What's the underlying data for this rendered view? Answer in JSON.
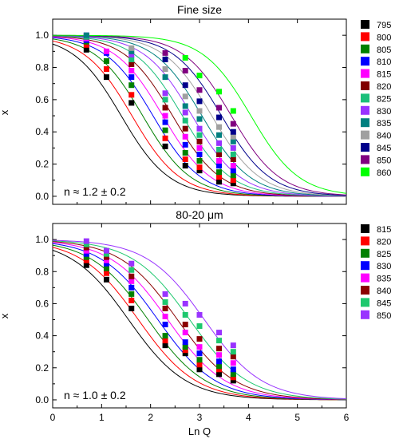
{
  "chart_data": [
    {
      "type": "scatter",
      "title": "Fine size",
      "xlabel": "",
      "ylabel": "x",
      "xlim": [
        0,
        6
      ],
      "ylim": [
        -0.05,
        1.1
      ],
      "yticks": [
        "0.0",
        "0.2",
        "0.4",
        "0.6",
        "0.8",
        "1.0"
      ],
      "annotation": "n ≈ 1.2 ± 0.2",
      "fit_exponent": 1.2,
      "legend_position": "right",
      "x": [
        0.69,
        1.1,
        1.61,
        2.3,
        2.71,
        3.0,
        3.4,
        3.69
      ],
      "series": [
        {
          "name": "795",
          "color": "#000000",
          "x50": 1.4,
          "values": [
            0.91,
            0.74,
            0.58,
            0.31,
            0.19,
            0.16,
            0.09,
            0.08
          ]
        },
        {
          "name": "800",
          "color": "#ff0000",
          "x50": 1.62,
          "values": [
            0.94,
            0.79,
            0.63,
            0.36,
            0.23,
            0.18,
            0.12,
            0.1
          ]
        },
        {
          "name": "805",
          "color": "#008000",
          "x50": 1.84,
          "values": [
            0.96,
            0.84,
            0.69,
            0.41,
            0.27,
            0.22,
            0.15,
            0.13
          ]
        },
        {
          "name": "810",
          "color": "#0000ff",
          "x50": 2.05,
          "values": [
            0.97,
            0.89,
            0.74,
            0.46,
            0.32,
            0.26,
            0.19,
            0.16
          ]
        },
        {
          "name": "815",
          "color": "#ff00ff",
          "x50": 2.25,
          "values": [
            0.98,
            0.9,
            0.78,
            0.5,
            0.37,
            0.3,
            0.22,
            0.19
          ]
        },
        {
          "name": "820",
          "color": "#800000",
          "x50": 2.45,
          "values": [
            0.99,
            null,
            0.82,
            0.55,
            0.42,
            0.34,
            0.26,
            0.23
          ]
        },
        {
          "name": "825",
          "color": "#1bbf7a",
          "x50": 2.65,
          "values": [
            0.99,
            null,
            0.85,
            0.6,
            0.47,
            0.38,
            0.29,
            0.26
          ]
        },
        {
          "name": "830",
          "color": "#9933ff",
          "x50": 2.85,
          "values": [
            1.0,
            null,
            0.88,
            0.64,
            0.52,
            0.42,
            0.33,
            0.3
          ]
        },
        {
          "name": "835",
          "color": "#008080",
          "x50": 3.05,
          "values": [
            1.0,
            null,
            0.9,
            0.74,
            0.56,
            0.48,
            0.38,
            0.34
          ]
        },
        {
          "name": "840",
          "color": "#a0a0a0",
          "x50": 3.25,
          "values": [
            null,
            null,
            0.92,
            0.79,
            0.62,
            0.53,
            0.43,
            0.37
          ]
        },
        {
          "name": "845",
          "color": "#00008b",
          "x50": 3.45,
          "values": [
            null,
            null,
            null,
            0.85,
            0.69,
            0.59,
            0.49,
            0.4
          ]
        },
        {
          "name": "850",
          "color": "#800080",
          "x50": 3.65,
          "values": [
            null,
            null,
            null,
            0.89,
            0.78,
            0.66,
            0.55,
            0.45
          ]
        },
        {
          "name": "860",
          "color": "#00ff00",
          "x50": 4.05,
          "values": [
            null,
            null,
            null,
            null,
            0.86,
            0.75,
            0.65,
            0.53
          ]
        }
      ]
    },
    {
      "type": "scatter",
      "title": "80-20 μm",
      "xlabel": "Ln Q",
      "ylabel": "x",
      "xlim": [
        0,
        6
      ],
      "ylim": [
        -0.05,
        1.1
      ],
      "xticks": [
        "0",
        "1",
        "2",
        "3",
        "4",
        "5",
        "6"
      ],
      "yticks": [
        "0.0",
        "0.2",
        "0.4",
        "0.6",
        "0.8",
        "1.0"
      ],
      "annotation": "n ≈ 1.0 ± 0.2",
      "fit_exponent": 1.0,
      "legend_position": "right",
      "x": [
        0.69,
        1.1,
        1.61,
        2.3,
        2.71,
        3.0,
        3.4,
        3.69
      ],
      "series": [
        {
          "name": "815",
          "color": "#000000",
          "x50": 1.55,
          "values": [
            0.84,
            0.75,
            0.57,
            0.34,
            0.29,
            0.19,
            0.16,
            0.12
          ]
        },
        {
          "name": "820",
          "color": "#ff0000",
          "x50": 1.75,
          "values": [
            0.87,
            0.79,
            0.62,
            0.37,
            0.31,
            0.22,
            0.19,
            0.14
          ]
        },
        {
          "name": "825",
          "color": "#008000",
          "x50": 1.95,
          "values": [
            0.89,
            0.82,
            0.66,
            0.4,
            0.33,
            0.25,
            0.21,
            0.16
          ]
        },
        {
          "name": "830",
          "color": "#0000ff",
          "x50": 2.15,
          "values": [
            0.91,
            0.85,
            0.7,
            0.47,
            0.36,
            0.29,
            0.24,
            0.19
          ]
        },
        {
          "name": "835",
          "color": "#ff00ff",
          "x50": 2.35,
          "values": [
            0.93,
            0.87,
            0.74,
            0.52,
            0.42,
            0.33,
            0.28,
            0.23
          ]
        },
        {
          "name": "840",
          "color": "#8b0000",
          "x50": 2.55,
          "values": [
            0.95,
            0.89,
            0.77,
            0.57,
            0.47,
            0.38,
            0.32,
            0.27
          ]
        },
        {
          "name": "845",
          "color": "#1ec86e",
          "x50": 2.8,
          "values": [
            0.97,
            0.91,
            0.81,
            0.61,
            0.53,
            0.46,
            0.37,
            0.3
          ]
        },
        {
          "name": "850",
          "color": "#9933ff",
          "x50": 3.1,
          "values": [
            0.99,
            0.93,
            0.85,
            0.66,
            0.6,
            0.53,
            0.42,
            0.34
          ]
        }
      ]
    }
  ]
}
